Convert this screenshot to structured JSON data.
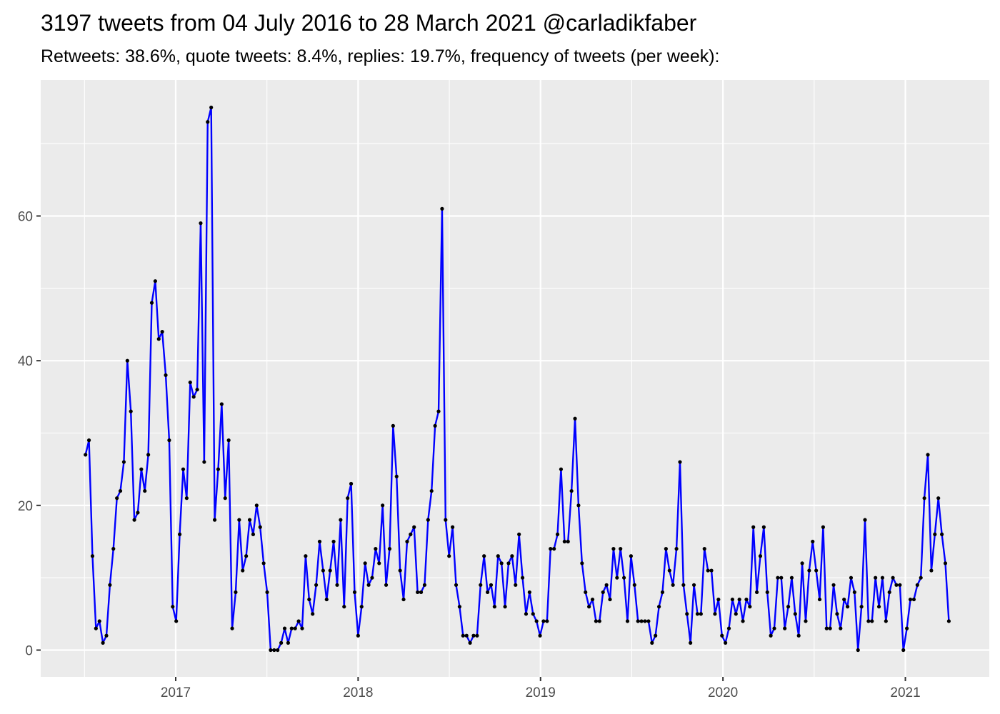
{
  "chart_data": {
    "type": "line",
    "title": "3197 tweets from 04 July 2016 to 28 March 2021 @carladikfaber",
    "subtitle": "Retweets: 38.6%, quote tweets: 8.4%, replies: 19.7%, frequency of tweets (per week):",
    "xlabel": "",
    "ylabel": "",
    "x_tick_labels": [
      "2017",
      "2018",
      "2019",
      "2020",
      "2021"
    ],
    "y_tick_labels": [
      "0",
      "20",
      "40",
      "60"
    ],
    "x_ticks": [
      2017,
      2018,
      2019,
      2020,
      2021
    ],
    "y_ticks": [
      0,
      20,
      40,
      60
    ],
    "xlim": [
      2016.26,
      2021.46
    ],
    "ylim": [
      -3.7,
      78.8
    ],
    "grid": true,
    "legend": "none",
    "colors": {
      "line": "#0000ff",
      "point": "#000000",
      "panel_background": "#ebebeb",
      "grid": "#ffffff"
    },
    "x_start": "2016-07-04",
    "x_step_days": 7,
    "values": [
      27,
      29,
      13,
      3,
      4,
      1,
      2,
      9,
      14,
      21,
      22,
      26,
      40,
      33,
      18,
      19,
      25,
      22,
      27,
      48,
      51,
      43,
      44,
      38,
      29,
      6,
      4,
      16,
      25,
      21,
      37,
      35,
      36,
      59,
      26,
      73,
      75,
      18,
      25,
      34,
      21,
      29,
      3,
      8,
      18,
      11,
      13,
      18,
      16,
      20,
      17,
      12,
      8,
      0,
      0,
      0,
      1,
      3,
      1,
      3,
      3,
      4,
      3,
      13,
      7,
      5,
      9,
      15,
      11,
      7,
      11,
      15,
      9,
      18,
      6,
      21,
      23,
      8,
      2,
      6,
      12,
      9,
      10,
      14,
      12,
      20,
      9,
      14,
      31,
      24,
      11,
      7,
      15,
      16,
      17,
      8,
      8,
      9,
      18,
      22,
      31,
      33,
      61,
      18,
      13,
      17,
      9,
      6,
      2,
      2,
      1,
      2,
      2,
      9,
      13,
      8,
      9,
      6,
      13,
      12,
      6,
      12,
      13,
      9,
      16,
      10,
      5,
      8,
      5,
      4,
      2,
      4,
      4,
      14,
      14,
      16,
      25,
      15,
      15,
      22,
      32,
      20,
      12,
      8,
      6,
      7,
      4,
      4,
      8,
      9,
      7,
      14,
      10,
      14,
      10,
      4,
      13,
      9,
      4,
      4,
      4,
      4,
      1,
      2,
      6,
      8,
      14,
      11,
      9,
      14,
      26,
      9,
      5,
      1,
      9,
      5,
      5,
      14,
      11,
      11,
      5,
      7,
      2,
      1,
      3,
      7,
      5,
      7,
      4,
      7,
      6,
      17,
      8,
      13,
      17,
      8,
      2,
      3,
      10,
      10,
      3,
      6,
      10,
      5,
      2,
      12,
      4,
      11,
      15,
      11,
      7,
      17,
      3,
      3,
      9,
      5,
      3,
      7,
      6,
      10,
      8,
      0,
      6,
      18,
      4,
      4,
      10,
      6,
      10,
      4,
      8,
      10,
      9,
      9,
      0,
      3,
      7,
      7,
      9,
      10,
      21,
      27,
      11,
      16,
      21,
      16,
      12,
      4
    ]
  }
}
